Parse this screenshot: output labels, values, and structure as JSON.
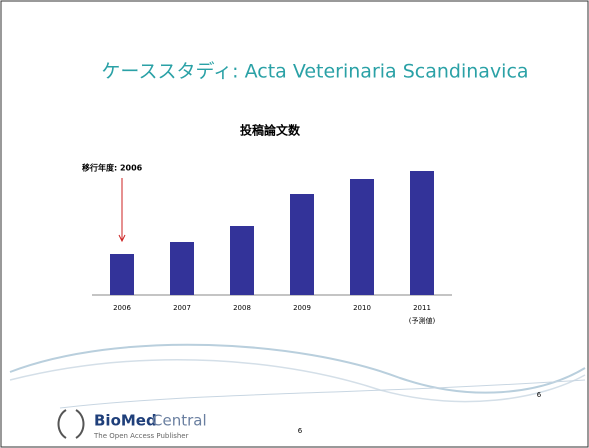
{
  "slide": {
    "title": "ケーススタディ: Acta Veterinaria Scandinavica",
    "page_number": "6",
    "corner_number": "6"
  },
  "footer": {
    "logo_bold": "BioMed",
    "logo_light": "Central",
    "tagline": "The Open Access Publisher"
  },
  "chart_data": {
    "type": "bar",
    "title": "投稿論文数",
    "categories": [
      "2006",
      "2007",
      "2008",
      "2009",
      "2010",
      "2011"
    ],
    "category_note": "(予測値)",
    "values": [
      41,
      53,
      69,
      101,
      116,
      124
    ],
    "color": "#333399",
    "ylim": [
      0,
      145
    ],
    "annotation": "移行年度: 2006",
    "annotation_color": "#cc2222"
  }
}
